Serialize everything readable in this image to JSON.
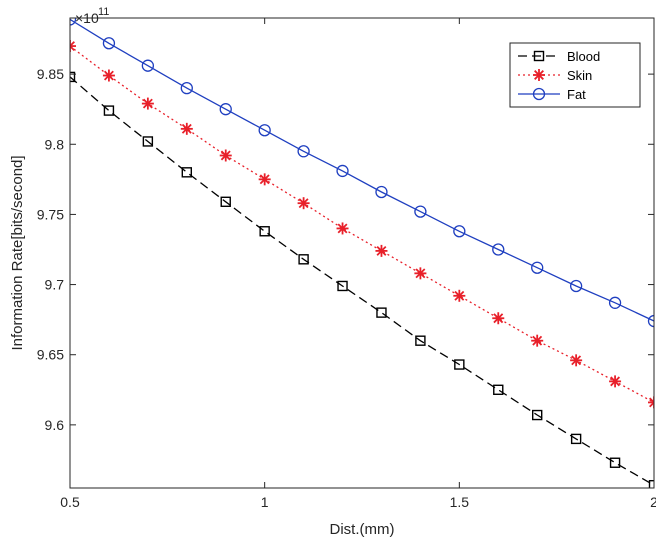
{
  "chart_data": {
    "type": "line",
    "xlabel": "Dist.(mm)",
    "ylabel": "Information Rate[bits/second]",
    "y_exponent_label": "×10",
    "y_exponent_power": "11",
    "xlim": [
      0.5,
      2
    ],
    "ylim": [
      9.555,
      9.89
    ],
    "x_ticks": [
      "0.5",
      "1",
      "1.5",
      "2"
    ],
    "y_ticks": [
      "9.6",
      "9.65",
      "9.7",
      "9.75",
      "9.8",
      "9.85"
    ],
    "x_tick_values": [
      0.5,
      1,
      1.5,
      2
    ],
    "y_tick_values": [
      9.6,
      9.65,
      9.7,
      9.75,
      9.8,
      9.85
    ],
    "grid": false,
    "legend_position": "top-right",
    "x": [
      0.5,
      0.6,
      0.7,
      0.8,
      0.9,
      1.0,
      1.1,
      1.2,
      1.3,
      1.4,
      1.5,
      1.6,
      1.7,
      1.8,
      1.9,
      2.0
    ],
    "series": [
      {
        "name": "Blood",
        "color": "#000000",
        "line_style": "dashed",
        "marker": "square",
        "values": [
          9.848,
          9.824,
          9.802,
          9.78,
          9.759,
          9.738,
          9.718,
          9.699,
          9.68,
          9.66,
          9.643,
          9.625,
          9.607,
          9.59,
          9.573,
          9.557
        ]
      },
      {
        "name": "Skin",
        "color": "#e8202a",
        "line_style": "dotted",
        "marker": "asterisk",
        "values": [
          9.87,
          9.849,
          9.829,
          9.811,
          9.792,
          9.775,
          9.758,
          9.74,
          9.724,
          9.708,
          9.692,
          9.676,
          9.66,
          9.646,
          9.631,
          9.616
        ]
      },
      {
        "name": "Fat",
        "color": "#1f3fc0",
        "line_style": "solid",
        "marker": "circle",
        "values": [
          9.889,
          9.872,
          9.856,
          9.84,
          9.825,
          9.81,
          9.795,
          9.781,
          9.766,
          9.752,
          9.738,
          9.725,
          9.712,
          9.699,
          9.687,
          9.674
        ]
      }
    ]
  }
}
